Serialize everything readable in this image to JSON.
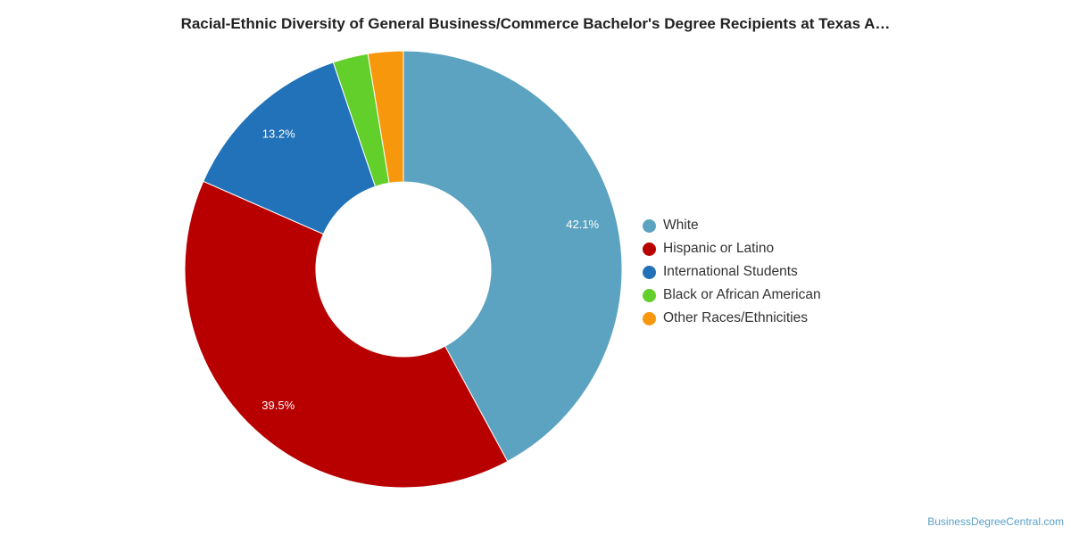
{
  "chart_data": {
    "type": "pie",
    "title": "Racial-Ethnic Diversity of General Business/Commerce Bachelor's Degree Recipients at Texas A…",
    "categories": [
      "White",
      "Hispanic or Latino",
      "International Students",
      "Black or African American",
      "Other Races/Ethnicities"
    ],
    "values": [
      42.1,
      39.5,
      13.2,
      2.6,
      2.6
    ],
    "data_labels": [
      "42.1%",
      "39.5%",
      "13.2%",
      "",
      ""
    ],
    "colors": [
      "#5ba3c0",
      "#b80000",
      "#2172b8",
      "#62cf2a",
      "#f7980c"
    ],
    "donut": true,
    "legend_position": "right"
  },
  "watermark": "BusinessDegreeCentral.com"
}
